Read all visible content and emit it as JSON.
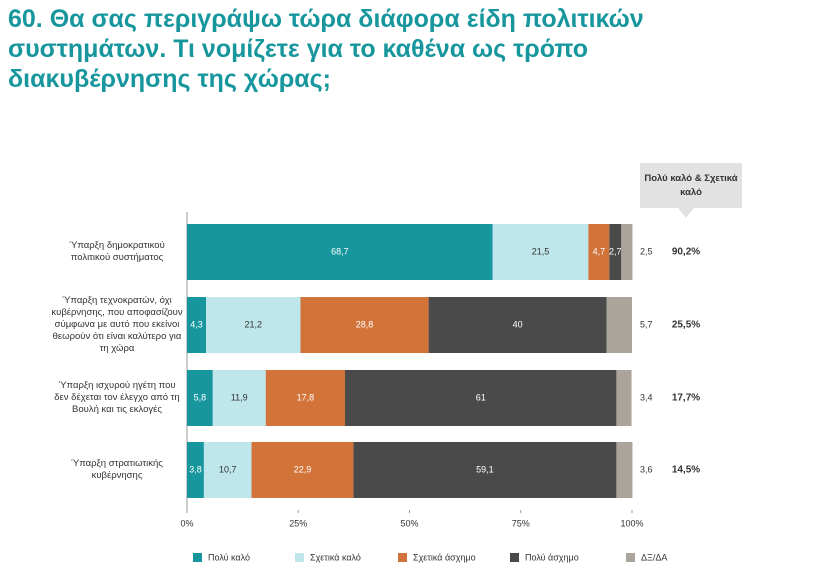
{
  "chart_data": {
    "type": "stacked-bar-horizontal",
    "title": "60. Θα σας περιγράψω τώρα διάφορα είδη πολιτικών συστημάτων. Τι νομίζετε για το καθένα ως τρόπο διακυβέρνησης της χώρας;",
    "categories": [
      "Ύπαρξη δημοκρατικού πολιτικού συστήματος",
      "Ύπαρξη τεχνοκρατών, όχι κυβέρνησης, που αποφασίζουν σύμφωνα με αυτό που εκείνοι θεωρούν ότι είναι καλύτερο για τη χώρα",
      "Ύπαρξη ισχυρού ηγέτη που δεν δέχεται τον έλεγχο από τη Βουλή και τις εκλογές",
      "Ύπαρξη στρατιωτικής κυβέρνησης"
    ],
    "series": [
      {
        "name": "Πολύ καλό",
        "color": "#17979d",
        "values": [
          68.7,
          4.3,
          5.8,
          3.8
        ],
        "value_labels": [
          "68,7",
          "4,3",
          "5,8",
          "3,8"
        ]
      },
      {
        "name": "Σχετικά καλό",
        "color": "#bfe6ea",
        "values": [
          21.5,
          21.2,
          11.9,
          10.7
        ],
        "value_labels": [
          "21,5",
          "21,2",
          "11,9",
          "10,7"
        ]
      },
      {
        "name": "Σχετικά άσχημο",
        "color": "#d2743a",
        "values": [
          4.7,
          28.8,
          17.8,
          22.9
        ],
        "value_labels": [
          "4,7",
          "28,8",
          "17,8",
          "22,9"
        ]
      },
      {
        "name": "Πολύ άσχημο",
        "color": "#4a4a4a",
        "values": [
          2.7,
          40,
          61,
          59.1
        ],
        "value_labels": [
          "2,7",
          "40",
          "61",
          "59,1"
        ]
      },
      {
        "name": "ΔΞ/ΔΑ",
        "color": "#aaa49b",
        "values": [
          2.5,
          5.7,
          3.4,
          3.6
        ],
        "value_labels": [
          "2,5",
          "5,7",
          "3,4",
          "3,6"
        ]
      }
    ],
    "totals": {
      "title": "Πολύ καλό & Σχετικά καλό",
      "values": [
        90.2,
        25.5,
        17.7,
        14.5
      ],
      "value_labels": [
        "90,2%",
        "25,5%",
        "17,7%",
        "14,5%"
      ]
    },
    "xlim": [
      0,
      100
    ],
    "xticks": [
      {
        "value": 0,
        "label": "0%"
      },
      {
        "value": 25,
        "label": "25%"
      },
      {
        "value": 50,
        "label": "50%"
      },
      {
        "value": 75,
        "label": "75%"
      },
      {
        "value": 100,
        "label": "100%"
      }
    ]
  }
}
